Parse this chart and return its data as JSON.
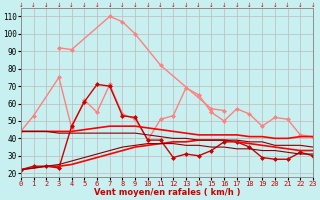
{
  "background_color": "#c8f0f0",
  "grid_color": "#c0b8b8",
  "xlabel": "Vent moyen/en rafales ( km/h )",
  "xlabel_color": "#cc0000",
  "ylabel_ticks": [
    20,
    30,
    40,
    50,
    60,
    70,
    80,
    90,
    100,
    110
  ],
  "xticks": [
    0,
    1,
    2,
    3,
    4,
    5,
    6,
    7,
    8,
    9,
    10,
    11,
    12,
    13,
    14,
    15,
    16,
    17,
    18,
    19,
    20,
    21,
    22,
    23
  ],
  "ylim": [
    18,
    115
  ],
  "xlim": [
    0,
    23
  ],
  "series": [
    {
      "x": [
        0,
        1,
        3,
        4,
        5,
        6,
        7,
        8,
        9,
        10,
        11,
        12,
        13,
        14,
        15,
        16,
        17,
        18,
        19,
        20,
        21,
        22,
        23
      ],
      "y": [
        44,
        53,
        75,
        46,
        62,
        55,
        71,
        54,
        51,
        39,
        51,
        53,
        69,
        65,
        55,
        50,
        57,
        54,
        47,
        52,
        51,
        42,
        41
      ],
      "color": "#ff8080",
      "marker": "D",
      "markersize": 2,
      "linewidth": 1.0,
      "linestyle": "-"
    },
    {
      "x": [
        3,
        4,
        7,
        8,
        9,
        11,
        15,
        16
      ],
      "y": [
        92,
        91,
        110,
        107,
        100,
        82,
        57,
        56
      ],
      "color": "#ff8080",
      "marker": "D",
      "markersize": 2,
      "linewidth": 1.0,
      "linestyle": "-"
    },
    {
      "x": [
        0,
        1,
        2,
        3,
        4,
        5,
        6,
        7,
        8,
        9,
        10,
        11,
        12,
        13,
        14,
        15,
        16,
        17,
        18,
        19,
        20,
        21,
        22,
        23
      ],
      "y": [
        22,
        24,
        24,
        23,
        47,
        61,
        71,
        70,
        53,
        52,
        39,
        39,
        29,
        31,
        30,
        33,
        38,
        38,
        35,
        29,
        28,
        28,
        32,
        30
      ],
      "color": "#cc0000",
      "marker": "D",
      "markersize": 2,
      "linewidth": 1.0,
      "linestyle": "-"
    },
    {
      "x": [
        0,
        1,
        2,
        3,
        4,
        5,
        6,
        7,
        8,
        9,
        10,
        11,
        12,
        13,
        14,
        15,
        16,
        17,
        18,
        19,
        20,
        21,
        22,
        23
      ],
      "y": [
        22,
        23,
        24,
        24,
        25,
        27,
        29,
        31,
        33,
        35,
        36,
        37,
        38,
        38,
        39,
        39,
        39,
        38,
        37,
        36,
        35,
        34,
        33,
        33
      ],
      "color": "#ff0000",
      "marker": null,
      "markersize": 0,
      "linewidth": 1.2,
      "linestyle": "-"
    },
    {
      "x": [
        0,
        1,
        2,
        3,
        4,
        5,
        6,
        7,
        8,
        9,
        10,
        11,
        12,
        13,
        14,
        15,
        16,
        17,
        18,
        19,
        20,
        21,
        22,
        23
      ],
      "y": [
        44,
        44,
        44,
        44,
        44,
        45,
        46,
        47,
        47,
        47,
        46,
        45,
        44,
        43,
        42,
        42,
        42,
        42,
        41,
        41,
        40,
        40,
        41,
        41
      ],
      "color": "#ff0000",
      "marker": null,
      "markersize": 0,
      "linewidth": 1.2,
      "linestyle": "-"
    },
    {
      "x": [
        0,
        1,
        2,
        3,
        4,
        5,
        6,
        7,
        8,
        9,
        10,
        11,
        12,
        13,
        14,
        15,
        16,
        17,
        18,
        19,
        20,
        21,
        22,
        23
      ],
      "y": [
        22,
        23,
        24,
        25,
        27,
        29,
        31,
        33,
        35,
        36,
        37,
        37,
        37,
        36,
        36,
        35,
        35,
        34,
        34,
        33,
        33,
        32,
        31,
        31
      ],
      "color": "#880000",
      "marker": null,
      "markersize": 0,
      "linewidth": 0.8,
      "linestyle": "-"
    },
    {
      "x": [
        0,
        1,
        2,
        3,
        4,
        5,
        6,
        7,
        8,
        9,
        10,
        11,
        12,
        13,
        14,
        15,
        16,
        17,
        18,
        19,
        20,
        21,
        22,
        23
      ],
      "y": [
        44,
        44,
        44,
        43,
        43,
        43,
        43,
        43,
        43,
        43,
        42,
        41,
        40,
        40,
        39,
        39,
        39,
        39,
        38,
        38,
        36,
        36,
        36,
        35
      ],
      "color": "#880000",
      "marker": null,
      "markersize": 0,
      "linewidth": 0.8,
      "linestyle": "-"
    }
  ]
}
